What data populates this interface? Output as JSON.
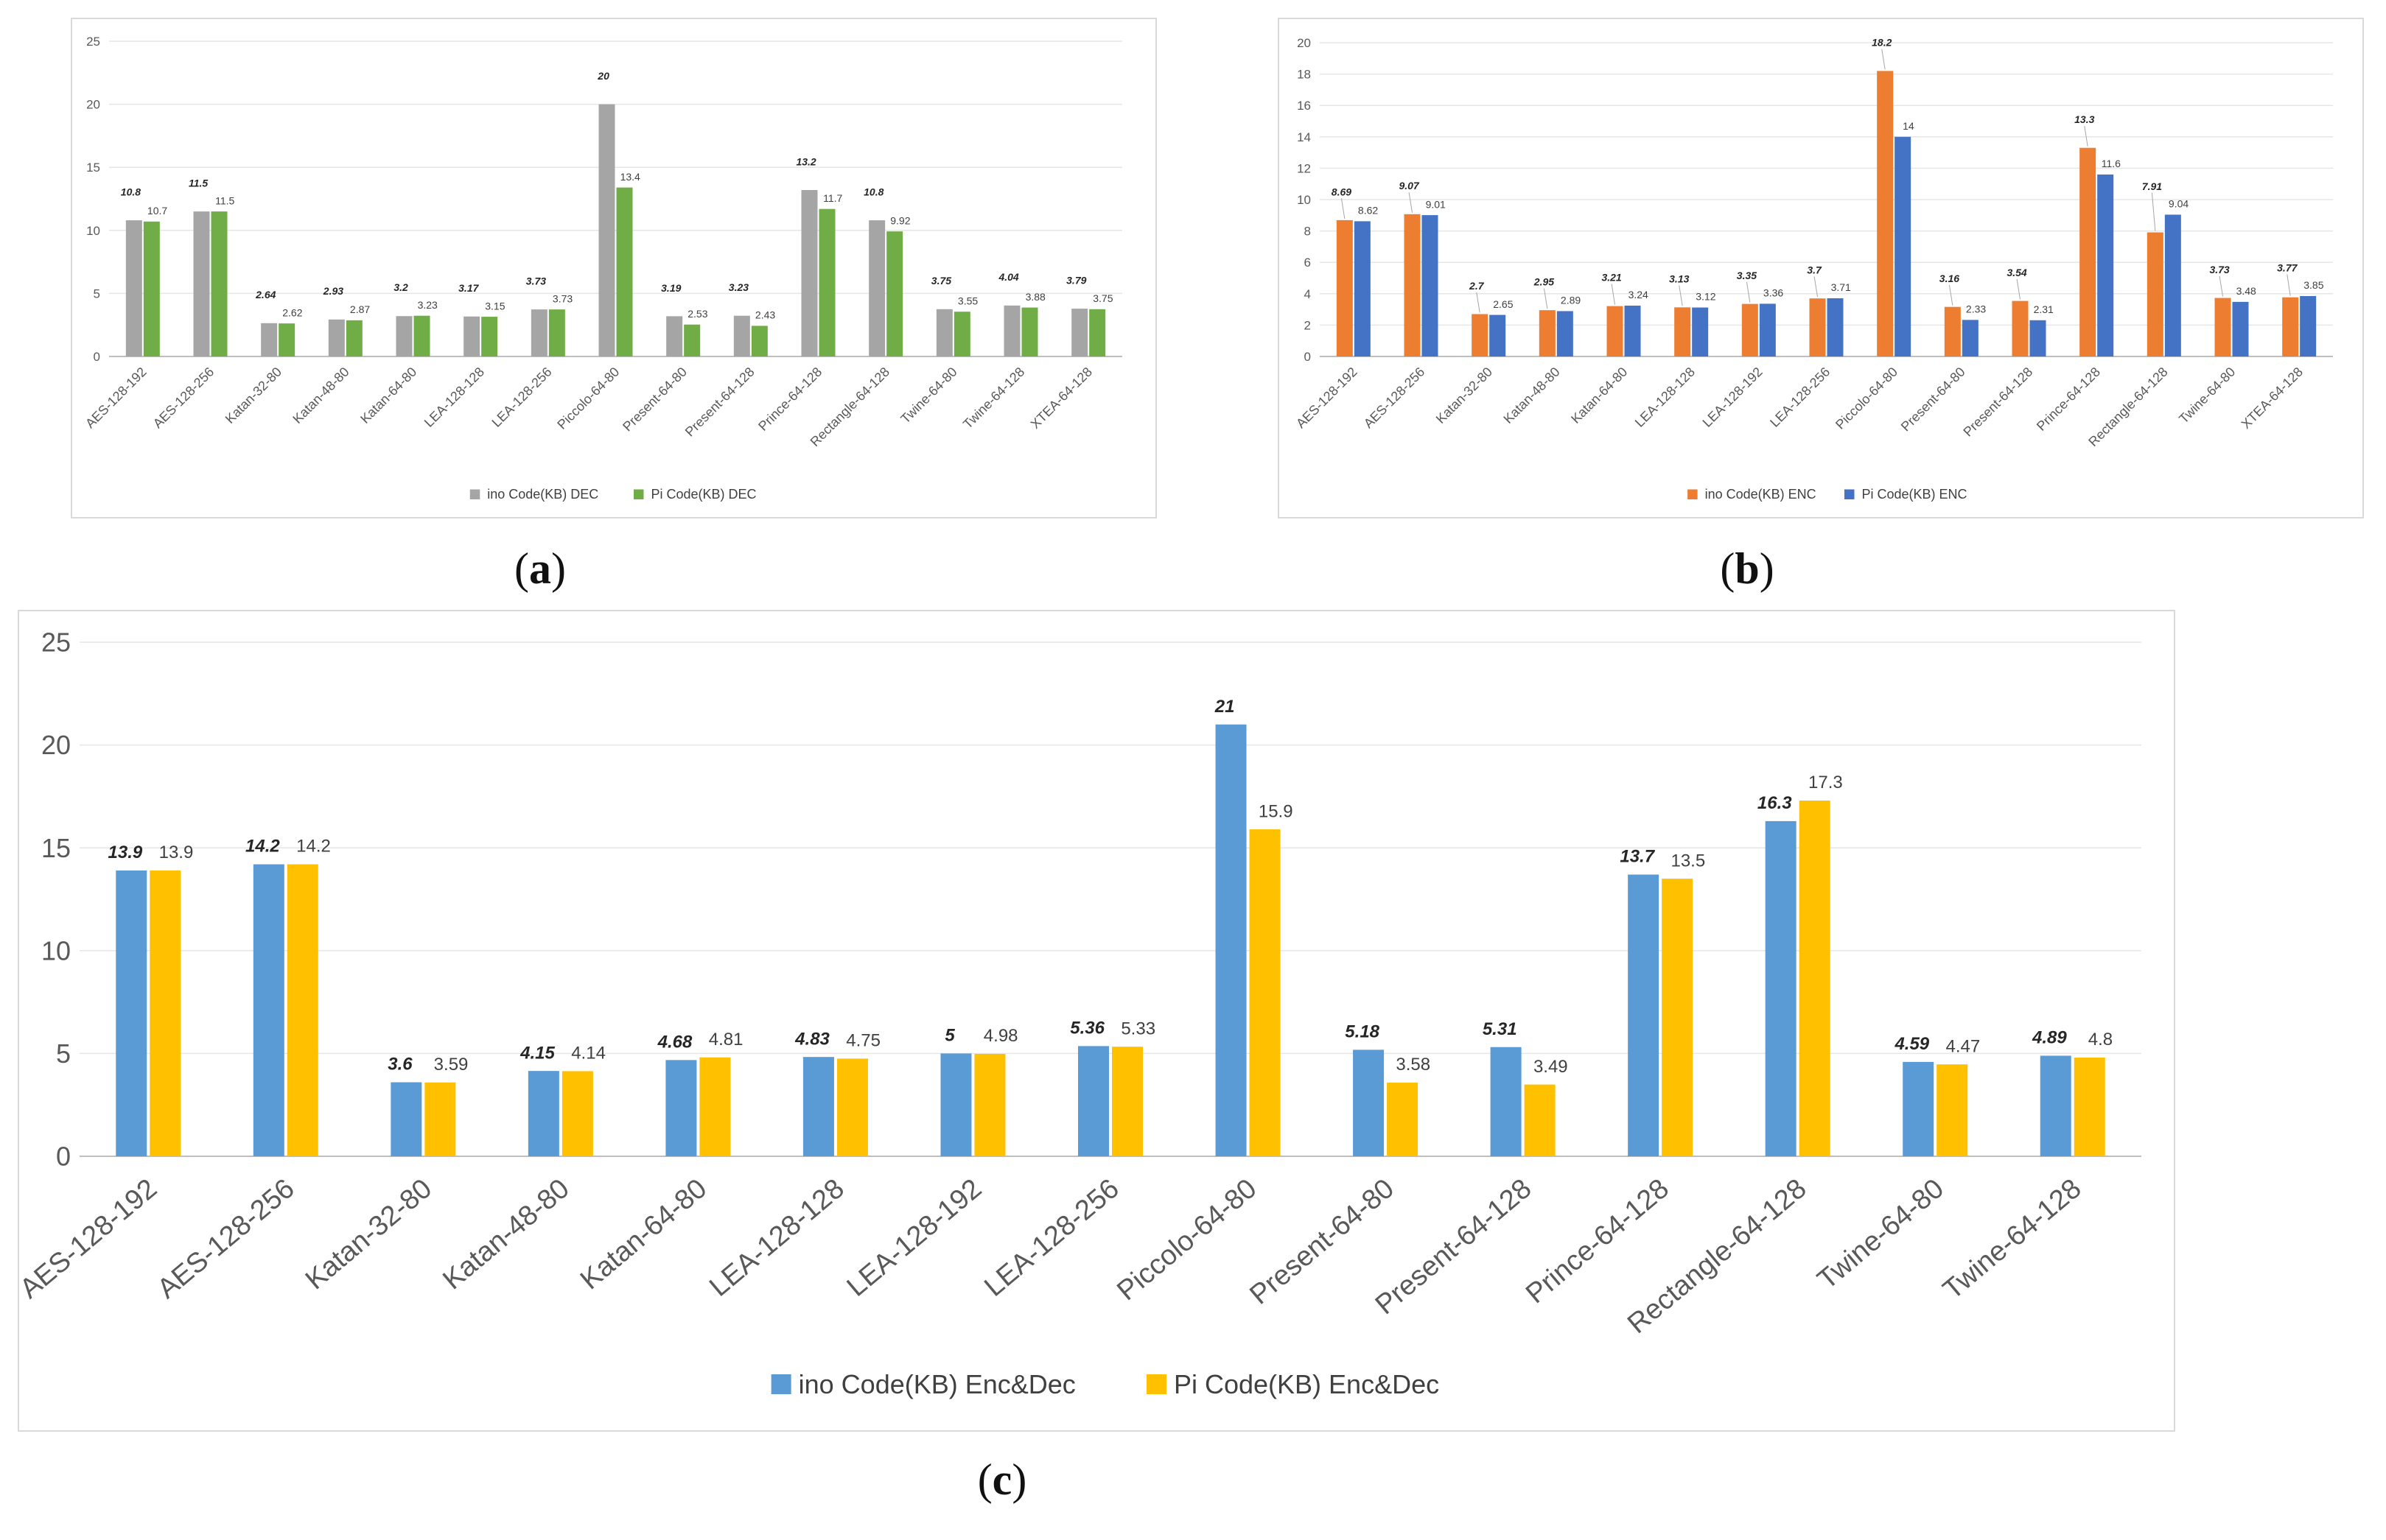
{
  "captions": {
    "a": "a",
    "b": "b",
    "c": "c"
  },
  "chart_data": [
    {
      "id": "a",
      "type": "bar",
      "title": "",
      "xlabel": "",
      "ylabel": "",
      "ylim": [
        0,
        25
      ],
      "yticks": [
        0,
        5,
        10,
        15,
        20,
        25
      ],
      "grid": true,
      "legend_position": "bottom",
      "categories": [
        "AES-128-192",
        "AES-128-256",
        "Katan-32-80",
        "Katan-48-80",
        "Katan-64-80",
        "LEA-128-128",
        "LEA-128-256",
        "Piccolo-64-80",
        "Present-64-80",
        "Present-64-128",
        "Prince-64-128",
        "Rectangle-64-128",
        "Twine-64-80",
        "Twine-64-128",
        "XTEA-64-128"
      ],
      "series": [
        {
          "name": "ino Code(KB)  DEC",
          "color": "#a5a5a5",
          "values": [
            10.8,
            11.5,
            2.64,
            2.93,
            3.2,
            3.17,
            3.73,
            20,
            3.19,
            3.23,
            13.2,
            10.8,
            3.75,
            4.04,
            3.79
          ]
        },
        {
          "name": "Pi Code(KB)  DEC",
          "color": "#70ad47",
          "values": [
            10.7,
            11.5,
            2.62,
            2.87,
            3.23,
            3.15,
            3.73,
            13.4,
            2.53,
            2.43,
            11.7,
            9.92,
            3.55,
            3.88,
            3.75
          ]
        }
      ]
    },
    {
      "id": "b",
      "type": "bar",
      "title": "",
      "xlabel": "",
      "ylabel": "",
      "ylim": [
        0,
        20
      ],
      "yticks": [
        0,
        2,
        4,
        6,
        8,
        10,
        12,
        14,
        16,
        18,
        20
      ],
      "grid": true,
      "legend_position": "bottom",
      "categories": [
        "AES-128-192",
        "AES-128-256",
        "Katan-32-80",
        "Katan-48-80",
        "Katan-64-80",
        "LEA-128-128",
        "LEA-128-192",
        "LEA-128-256",
        "Piccolo-64-80",
        "Present-64-80",
        "Present-64-128",
        "Prince-64-128",
        "Rectangle-64-128",
        "Twine-64-80",
        "XTEA-64-128"
      ],
      "series": [
        {
          "name": "ino Code(KB) ENC",
          "color": "#ed7d31",
          "values": [
            8.69,
            9.07,
            2.7,
            2.95,
            3.21,
            3.13,
            3.35,
            3.7,
            18.2,
            3.16,
            3.54,
            13.3,
            7.91,
            3.73,
            3.77
          ]
        },
        {
          "name": "Pi Code(KB) ENC",
          "color": "#4472c4",
          "values": [
            8.62,
            9.01,
            2.65,
            2.89,
            3.24,
            3.12,
            3.36,
            3.71,
            14,
            2.33,
            2.31,
            11.6,
            9.04,
            3.48,
            3.85
          ]
        }
      ]
    },
    {
      "id": "c",
      "type": "bar",
      "title": "",
      "xlabel": "",
      "ylabel": "",
      "ylim": [
        0,
        25
      ],
      "yticks": [
        0,
        5,
        10,
        15,
        20,
        25
      ],
      "grid": true,
      "legend_position": "bottom",
      "categories": [
        "AES-128-192",
        "AES-128-256",
        "Katan-32-80",
        "Katan-48-80",
        "Katan-64-80",
        "LEA-128-128",
        "LEA-128-192",
        "LEA-128-256",
        "Piccolo-64-80",
        "Present-64-80",
        "Present-64-128",
        "Prince-64-128",
        "Rectangle-64-128",
        "Twine-64-80",
        "Twine-64-128"
      ],
      "series": [
        {
          "name": "ino  Code(KB) Enc&Dec",
          "color": "#5b9bd5",
          "values": [
            13.9,
            14.2,
            3.6,
            4.15,
            4.68,
            4.83,
            5,
            5.36,
            21,
            5.18,
            5.31,
            13.7,
            16.3,
            4.59,
            4.89
          ]
        },
        {
          "name": "Pi  Code(KB) Enc&Dec",
          "color": "#ffc000",
          "values": [
            13.9,
            14.2,
            3.59,
            4.14,
            4.81,
            4.75,
            4.98,
            5.33,
            15.9,
            3.58,
            3.49,
            13.5,
            17.3,
            4.47,
            4.8
          ]
        }
      ]
    }
  ]
}
